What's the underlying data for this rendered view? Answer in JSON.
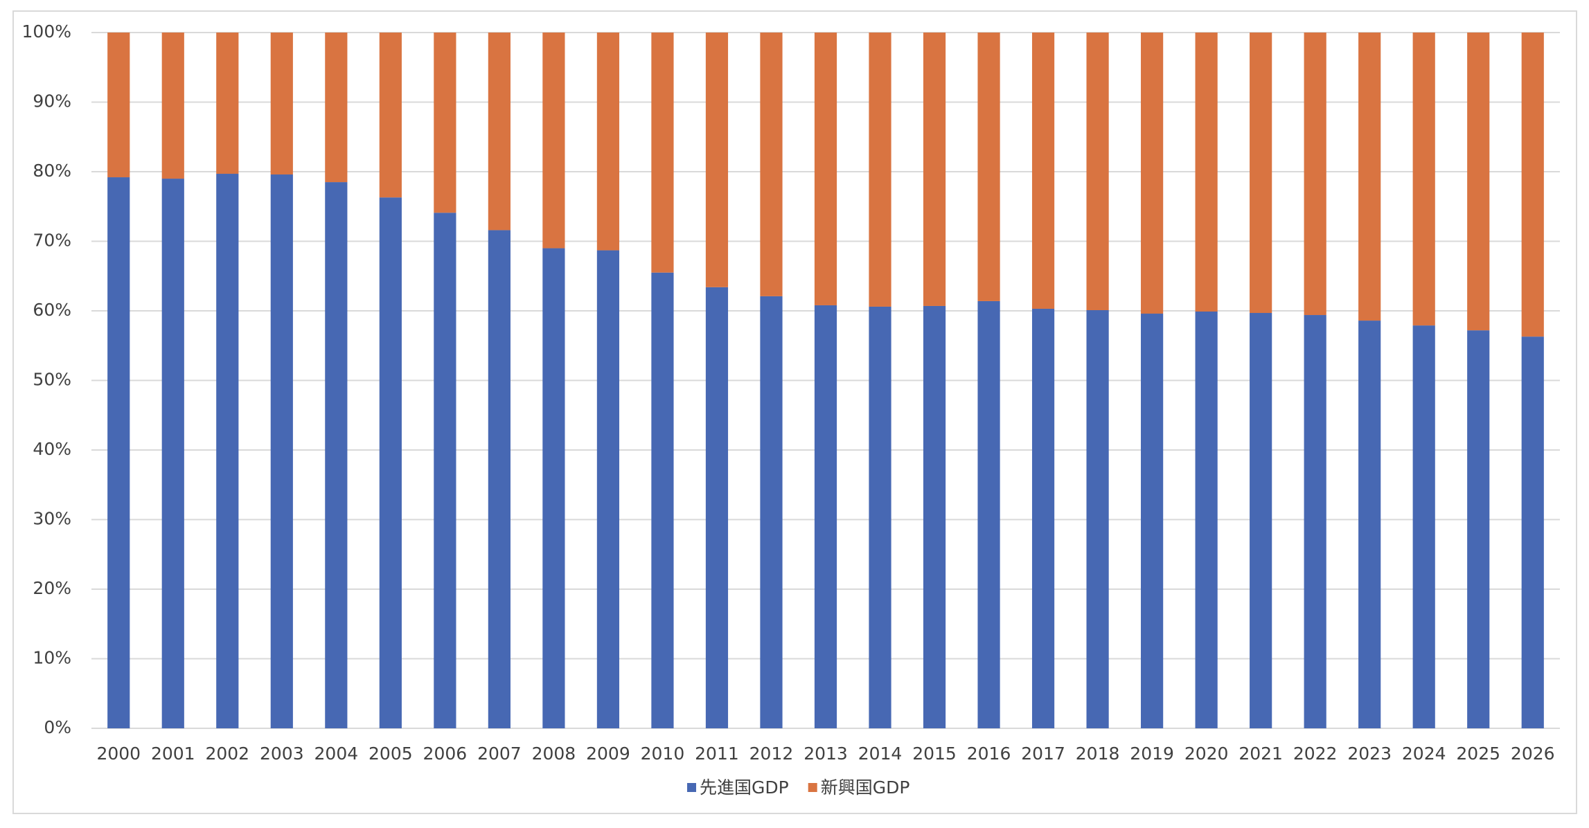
{
  "chart_data": {
    "type": "stacked_bar",
    "categories": [
      "2000",
      "2001",
      "2002",
      "2003",
      "2004",
      "2005",
      "2006",
      "2007",
      "2008",
      "2009",
      "2010",
      "2011",
      "2012",
      "2013",
      "2014",
      "2015",
      "2016",
      "2017",
      "2018",
      "2019",
      "2020",
      "2021",
      "2022",
      "2023",
      "2024",
      "2025",
      "2026"
    ],
    "series": [
      {
        "name": "先進国GDP",
        "color": "#4768b3",
        "values": [
          79.2,
          79.0,
          79.7,
          79.6,
          78.5,
          76.3,
          74.1,
          71.6,
          69.0,
          68.7,
          65.5,
          63.4,
          62.1,
          60.8,
          60.6,
          60.7,
          61.4,
          60.3,
          60.1,
          59.6,
          59.9,
          59.7,
          59.4,
          58.6,
          57.9,
          57.2,
          56.3
        ]
      },
      {
        "name": "新興国GDP",
        "color": "#d97441",
        "values": [
          20.8,
          21.0,
          20.3,
          20.4,
          21.5,
          23.7,
          25.9,
          28.4,
          31.0,
          31.3,
          34.5,
          36.6,
          37.9,
          39.2,
          39.4,
          39.3,
          38.6,
          39.7,
          39.9,
          40.4,
          40.1,
          40.3,
          40.6,
          41.4,
          42.1,
          42.8,
          43.7
        ]
      }
    ],
    "ylim": [
      0,
      100
    ],
    "yticks": [
      {
        "value": 0,
        "label": "0%"
      },
      {
        "value": 10,
        "label": "10%"
      },
      {
        "value": 20,
        "label": "20%"
      },
      {
        "value": 30,
        "label": "30%"
      },
      {
        "value": 40,
        "label": "40%"
      },
      {
        "value": 50,
        "label": "50%"
      },
      {
        "value": 60,
        "label": "60%"
      },
      {
        "value": 70,
        "label": "70%"
      },
      {
        "value": 80,
        "label": "80%"
      },
      {
        "value": 90,
        "label": "90%"
      },
      {
        "value": 100,
        "label": "100%"
      }
    ],
    "grid": true,
    "legend": "bottom"
  }
}
